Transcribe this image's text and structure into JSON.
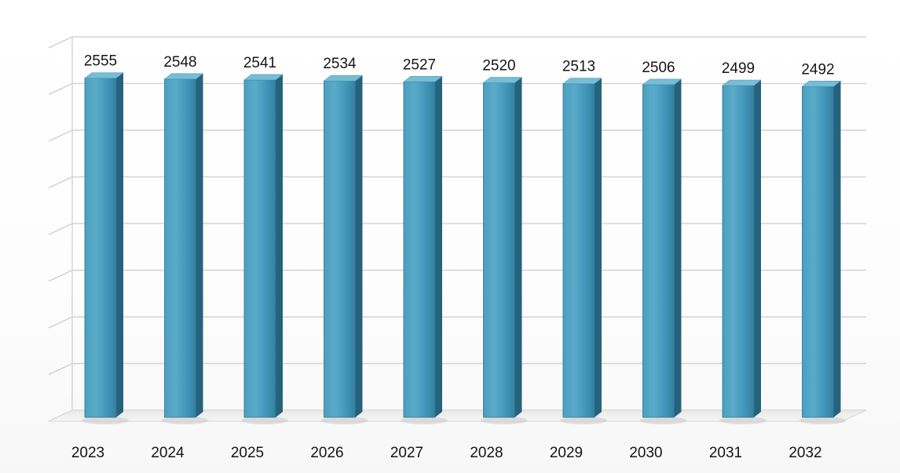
{
  "chart_data": {
    "type": "bar",
    "categories": [
      "2023",
      "2024",
      "2025",
      "2026",
      "2027",
      "2028",
      "2029",
      "2030",
      "2031",
      "2032"
    ],
    "values": [
      2555,
      2548,
      2541,
      2534,
      2527,
      2520,
      2513,
      2506,
      2499,
      2492
    ],
    "title": "",
    "xlabel": "",
    "ylabel": "",
    "grid": true,
    "legend": "none",
    "colors": {
      "bar_front": "#3f93b6",
      "bar_front_light": "#58a9c8",
      "bar_side": "#25627c",
      "bar_top": "#78bcd6"
    }
  }
}
